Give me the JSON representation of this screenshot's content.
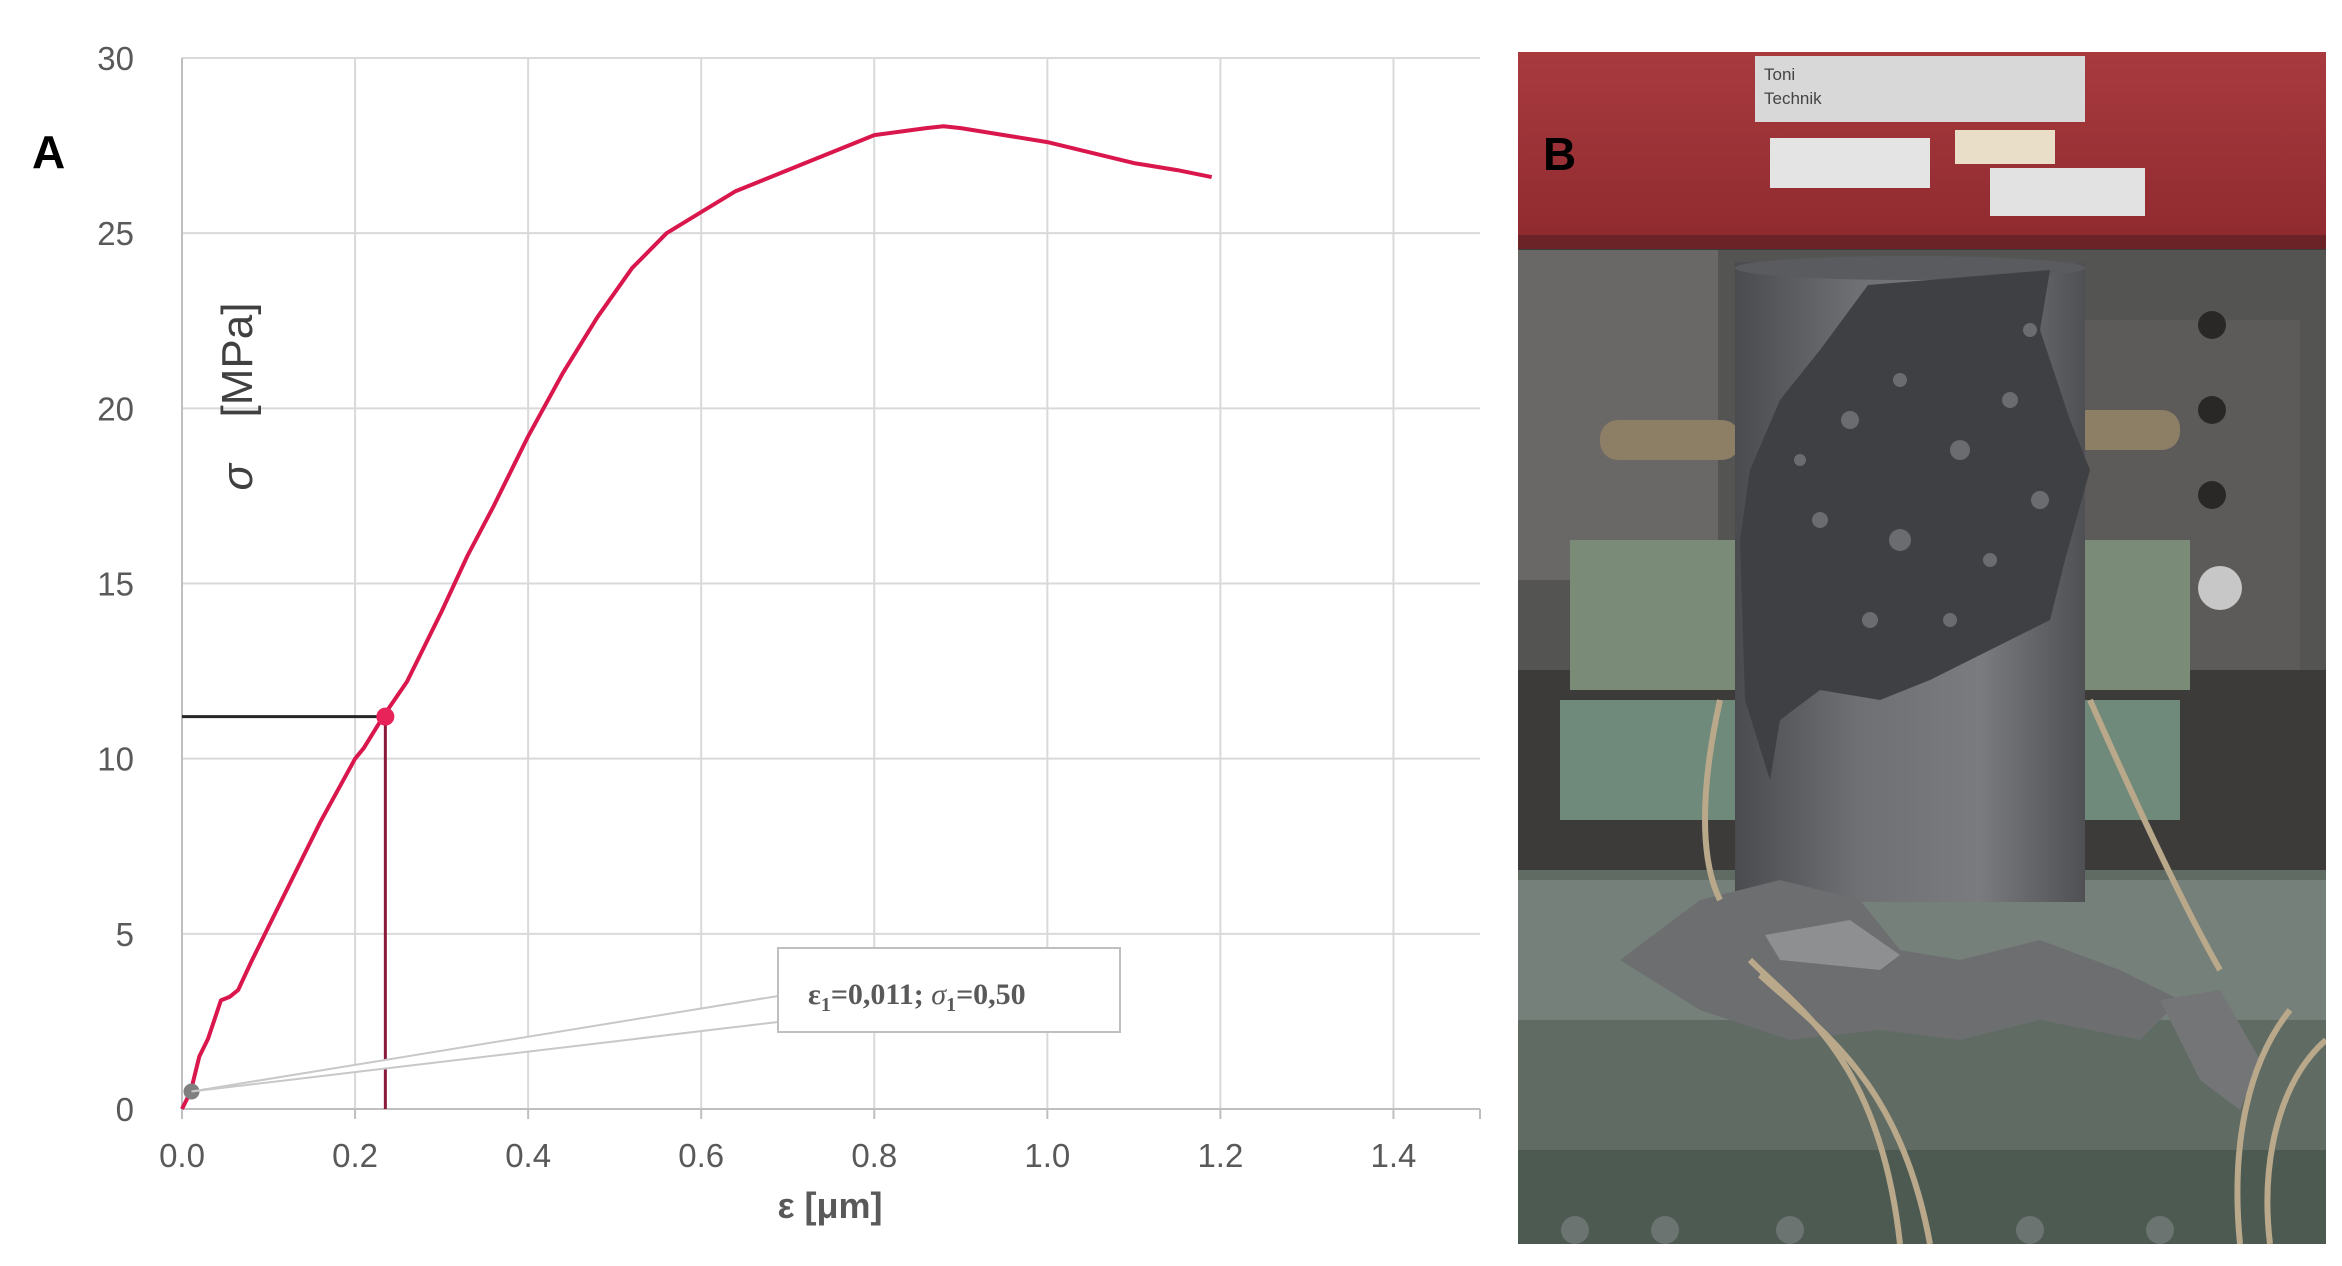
{
  "panels": {
    "a_letter": "A",
    "b_letter": "B"
  },
  "chart_data": {
    "type": "line",
    "xlabel": "ε [μm]",
    "ylabel_symbol": "σ",
    "ylabel_unit": "[MPa]",
    "xlim": [
      0,
      1.5
    ],
    "ylim": [
      0,
      30
    ],
    "x_ticks": [
      "0.0",
      "0.2",
      "0.4",
      "0.6",
      "0.8",
      "1.0",
      "1.2",
      "1.4"
    ],
    "x_tick_values": [
      0,
      0.2,
      0.4,
      0.6,
      0.8,
      1.0,
      1.2,
      1.4
    ],
    "y_ticks": [
      "0",
      "5",
      "10",
      "15",
      "20",
      "25",
      "30"
    ],
    "y_tick_values": [
      0,
      5,
      10,
      15,
      20,
      25,
      30
    ],
    "grid": true,
    "series": [
      {
        "color": "#d9174d",
        "x": [
          0.0,
          0.01,
          0.02,
          0.03,
          0.045,
          0.055,
          0.065,
          0.08,
          0.1,
          0.12,
          0.14,
          0.16,
          0.18,
          0.2,
          0.21,
          0.235,
          0.26,
          0.28,
          0.3,
          0.33,
          0.36,
          0.4,
          0.44,
          0.48,
          0.52,
          0.56,
          0.6,
          0.64,
          0.67,
          0.7,
          0.72,
          0.76,
          0.78,
          0.8,
          0.83,
          0.86,
          0.88,
          0.9,
          0.95,
          1.0,
          1.05,
          1.1,
          1.15,
          1.19
        ],
        "y": [
          0.0,
          0.5,
          1.5,
          2.0,
          3.1,
          3.2,
          3.4,
          4.2,
          5.2,
          6.2,
          7.2,
          8.2,
          9.1,
          10.0,
          10.3,
          11.3,
          12.2,
          13.2,
          14.2,
          15.8,
          17.2,
          19.2,
          21.0,
          22.6,
          24.0,
          25.0,
          25.6,
          26.2,
          26.5,
          26.8,
          27.0,
          27.4,
          27.6,
          27.8,
          27.9,
          28.0,
          28.05,
          28.0,
          27.8,
          27.6,
          27.3,
          27.0,
          26.8,
          26.6
        ]
      }
    ],
    "highlight_point": {
      "x": 0.235,
      "y": 11.2,
      "color": "#e8235a"
    },
    "origin_point": {
      "x": 0.011,
      "y": 0.5,
      "color": "#7f7f7f"
    },
    "callout": {
      "epsilon_label": "ε",
      "sigma_label": "σ",
      "subscript": "1",
      "epsilon_value": "=0,011; ",
      "sigma_value": "=0,50"
    }
  },
  "photo": {
    "sign_text_1": "Toni",
    "sign_text_2": "Technik"
  }
}
